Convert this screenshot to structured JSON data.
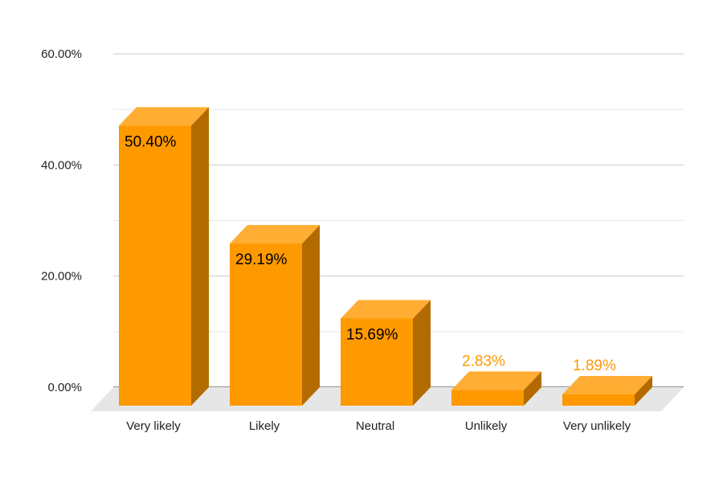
{
  "chart_data": {
    "type": "bar",
    "title": "",
    "xlabel": "",
    "ylabel": "",
    "categories": [
      "Very likely",
      "Likely",
      "Neutral",
      "Unlikely",
      "Very unlikely"
    ],
    "values": [
      50.4,
      29.19,
      15.69,
      2.83,
      1.89
    ],
    "data_labels": [
      "50.40%",
      "29.19%",
      "15.69%",
      "2.83%",
      "1.89%"
    ],
    "ylim": [
      0,
      60
    ],
    "y_ticks": [
      {
        "value": 0,
        "label": "0.00%"
      },
      {
        "value": 20,
        "label": "20.00%"
      },
      {
        "value": 40,
        "label": "40.00%"
      },
      {
        "value": 60,
        "label": "60.00%"
      }
    ],
    "minor_gridlines": [
      10,
      30,
      50
    ],
    "grid": true,
    "style": "3d",
    "colors": {
      "bar_front": "#ff9900",
      "bar_top": "#ffad33",
      "bar_side": "#b36b00",
      "label_inside": "#000000",
      "label_outside": "#ff9900",
      "floor": "#e6e6e6",
      "grid_major": "#cccccc",
      "grid_minor": "#e8e8e8",
      "axis_text": "#222222"
    }
  }
}
